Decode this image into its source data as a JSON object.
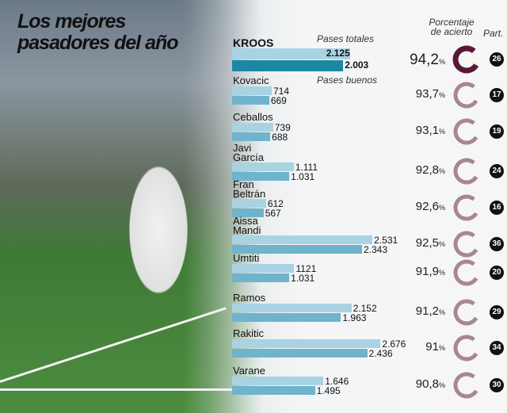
{
  "title": [
    "Los mejores",
    "pasadores del año"
  ],
  "headers": {
    "totales": "Pases totales",
    "buenos": "Pases buenos",
    "porcentaje": [
      "Porcentaje",
      "de acierto"
    ],
    "partidos": "Part."
  },
  "colors": {
    "total_bar": "#a9d3e2",
    "good_bar": "#6fb3cc",
    "highlight_good": "#1b88a3",
    "highlight_ring": "#5a1738",
    "ring": "#a8878f"
  },
  "chart_data": {
    "type": "bar",
    "categories": [
      "KROOS",
      "Kovacic",
      "Ceballos",
      "Javi García",
      "Fran Beltrán",
      "Aissa Mandi",
      "Umtiti",
      "Ramos",
      "Rakitic",
      "Varane"
    ],
    "series": [
      {
        "name": "Pases totales",
        "values": [
          2125,
          714,
          739,
          1111,
          612,
          2531,
          1121,
          2152,
          2676,
          1646
        ],
        "labels": [
          "2.125",
          "714",
          "739",
          "1.111",
          "612",
          "2.531",
          "1121",
          "2.152",
          "2.676",
          "1.646"
        ]
      },
      {
        "name": "Pases buenos",
        "values": [
          2003,
          669,
          688,
          1031,
          567,
          2343,
          1031,
          1963,
          2436,
          1495
        ],
        "labels": [
          "2.003",
          "669",
          "688",
          "1.031",
          "567",
          "2.343",
          "1.031",
          "1.963",
          "2.436",
          "1.495"
        ]
      }
    ],
    "accuracy": [
      94.2,
      93.7,
      93.1,
      92.8,
      92.6,
      92.5,
      91.9,
      91.2,
      91,
      90.8
    ],
    "accuracy_labels": [
      "94,2",
      "93,7",
      "93,1",
      "92,8",
      "92,6",
      "92,5",
      "91,9",
      "91,2",
      "91",
      "90,8"
    ],
    "matches": [
      26,
      17,
      19,
      24,
      16,
      36,
      20,
      29,
      34,
      30
    ]
  }
}
